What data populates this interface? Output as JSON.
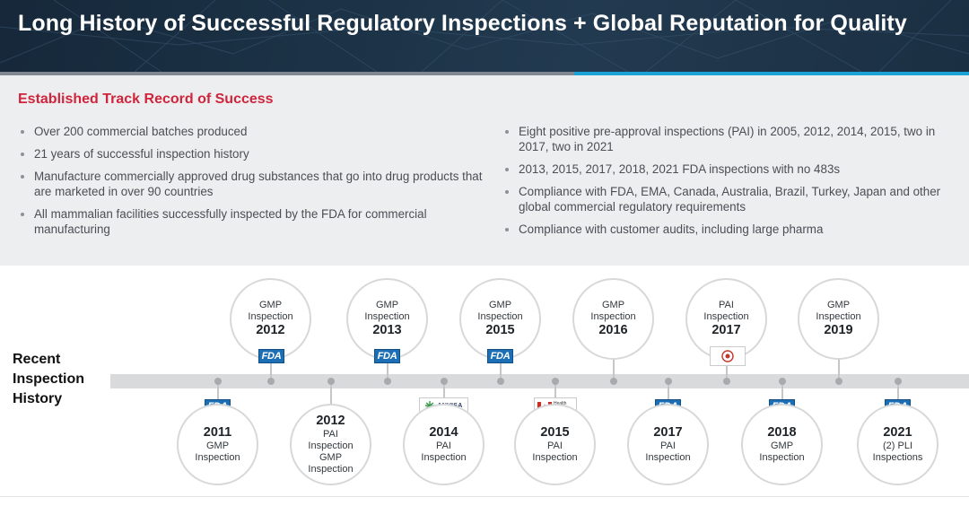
{
  "header": {
    "title": "Long History of Successful Regulatory Inspections + Global Reputation for Quality"
  },
  "track_record": {
    "heading": "Established Track Record of Success",
    "left_bullets": [
      "Over 200 commercial batches produced",
      "21 years of successful inspection history",
      "Manufacture commercially approved drug substances that go into drug products that are marketed in over 90 countries",
      "All mammalian facilities successfully inspected by the FDA for commercial manufacturing"
    ],
    "right_bullets": [
      "Eight positive pre-approval inspections (PAI) in 2005, 2012, 2014, 2015, two in 2017, two in 2021",
      "2013, 2015, 2017, 2018, 2021 FDA inspections with no 483s",
      "Compliance with FDA, EMA, Canada, Australia, Brazil, Turkey, Japan and other global commercial regulatory requirements",
      "Compliance with customer audits, including large pharma"
    ]
  },
  "timeline": {
    "label": "Recent Inspection History",
    "logos": {
      "fda": "FDA",
      "anvisa": "ANVISA",
      "health_canada": "Health Canada"
    },
    "top": [
      {
        "type": "GMP",
        "type2": "Inspection",
        "year": "2012"
      },
      {
        "type": "GMP",
        "type2": "Inspection",
        "year": "2013"
      },
      {
        "type": "GMP",
        "type2": "Inspection",
        "year": "2015"
      },
      {
        "type": "GMP",
        "type2": "Inspection",
        "year": "2016"
      },
      {
        "type": "PAI",
        "type2": "Inspection",
        "year": "2017"
      },
      {
        "type": "GMP",
        "type2": "Inspection",
        "year": "2019"
      }
    ],
    "bottom": [
      {
        "year": "2011",
        "l1": "GMP",
        "l2": "Inspection"
      },
      {
        "year": "2012",
        "l1": "PAI",
        "l2": "Inspection",
        "l3": "GMP",
        "l4": "Inspection"
      },
      {
        "year": "2014",
        "l1": "PAI",
        "l2": "Inspection"
      },
      {
        "year": "2015",
        "l1": "PAI",
        "l2": "Inspection"
      },
      {
        "year": "2017",
        "l1": "PAI",
        "l2": "Inspection"
      },
      {
        "year": "2018",
        "l1": "GMP",
        "l2": "Inspection"
      },
      {
        "year": "2021",
        "l1": "(2) PLI",
        "l2": "Inspections"
      }
    ]
  },
  "colors": {
    "heading_red": "#d0243c",
    "accent_blue": "#1aa3d6",
    "fda_blue": "#1d6fb5"
  }
}
